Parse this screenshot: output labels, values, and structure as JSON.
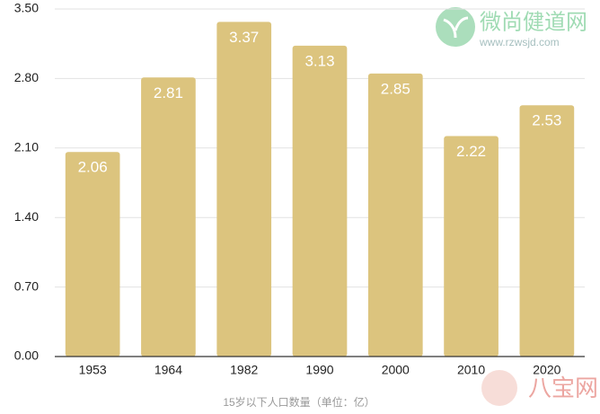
{
  "chart_data": {
    "type": "bar",
    "x_label": "15岁以下人口数量（单位：亿）",
    "categories": [
      "1953",
      "1964",
      "1982",
      "1990",
      "2000",
      "2010",
      "2020"
    ],
    "values": [
      2.06,
      2.81,
      3.37,
      3.13,
      2.85,
      2.22,
      2.53
    ],
    "color": "#dcc47e",
    "ylim": [
      0,
      3.5
    ],
    "yticks": [
      {
        "value": 0,
        "label": "0.00"
      },
      {
        "value": 0.7,
        "label": "0.70"
      },
      {
        "value": 1.4,
        "label": "1.40"
      },
      {
        "value": 2.1,
        "label": "2.10"
      },
      {
        "value": 2.8,
        "label": "2.80"
      },
      {
        "value": 3.5,
        "label": "3.50"
      }
    ],
    "grid": true,
    "watermark_texts": [
      "微尚健道网",
      "www.rzwsjd.com",
      "八宝网"
    ]
  }
}
